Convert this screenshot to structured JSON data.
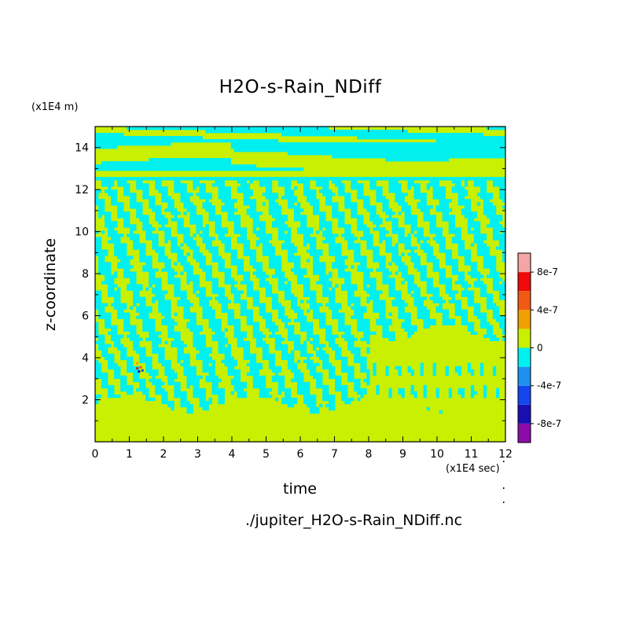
{
  "chart_data": {
    "type": "heatmap",
    "title": "H2O-s-Rain_NDiff",
    "xlabel": "time",
    "ylabel": "z-coordinate",
    "x_unit": "(x1E4 sec)",
    "y_unit": "(x1E4 m)",
    "source_file": "./jupiter_H2O-s-Rain_NDiff.nc",
    "xlim": [
      0,
      12
    ],
    "ylim": [
      0,
      15
    ],
    "x_ticks": [
      0,
      1,
      2,
      3,
      4,
      5,
      6,
      7,
      8,
      9,
      10,
      11,
      12
    ],
    "y_ticks": [
      2,
      4,
      6,
      8,
      10,
      12,
      14
    ],
    "colorbar": {
      "levels": [
        -1e-06,
        -8e-07,
        -6e-07,
        -4e-07,
        -2e-07,
        0,
        2e-07,
        4e-07,
        6e-07,
        8e-07,
        1e-06
      ],
      "colors": [
        "#8b0ca8",
        "#1a0fb3",
        "#1446f0",
        "#1e90f0",
        "#00f0f0",
        "#c8f000",
        "#f0a000",
        "#f05a14",
        "#f00a0a",
        "#f5a5a5"
      ],
      "tick_labels": [
        "8e-7",
        "4e-7",
        "0",
        "-4e-7",
        "-8e-7"
      ],
      "tick_values": [
        8e-07,
        4e-07,
        0,
        -4e-07,
        -8e-07
      ]
    },
    "field_description_colors": {
      "positive_small": "#c8f000",
      "negative_small": "#00f0f0"
    }
  }
}
